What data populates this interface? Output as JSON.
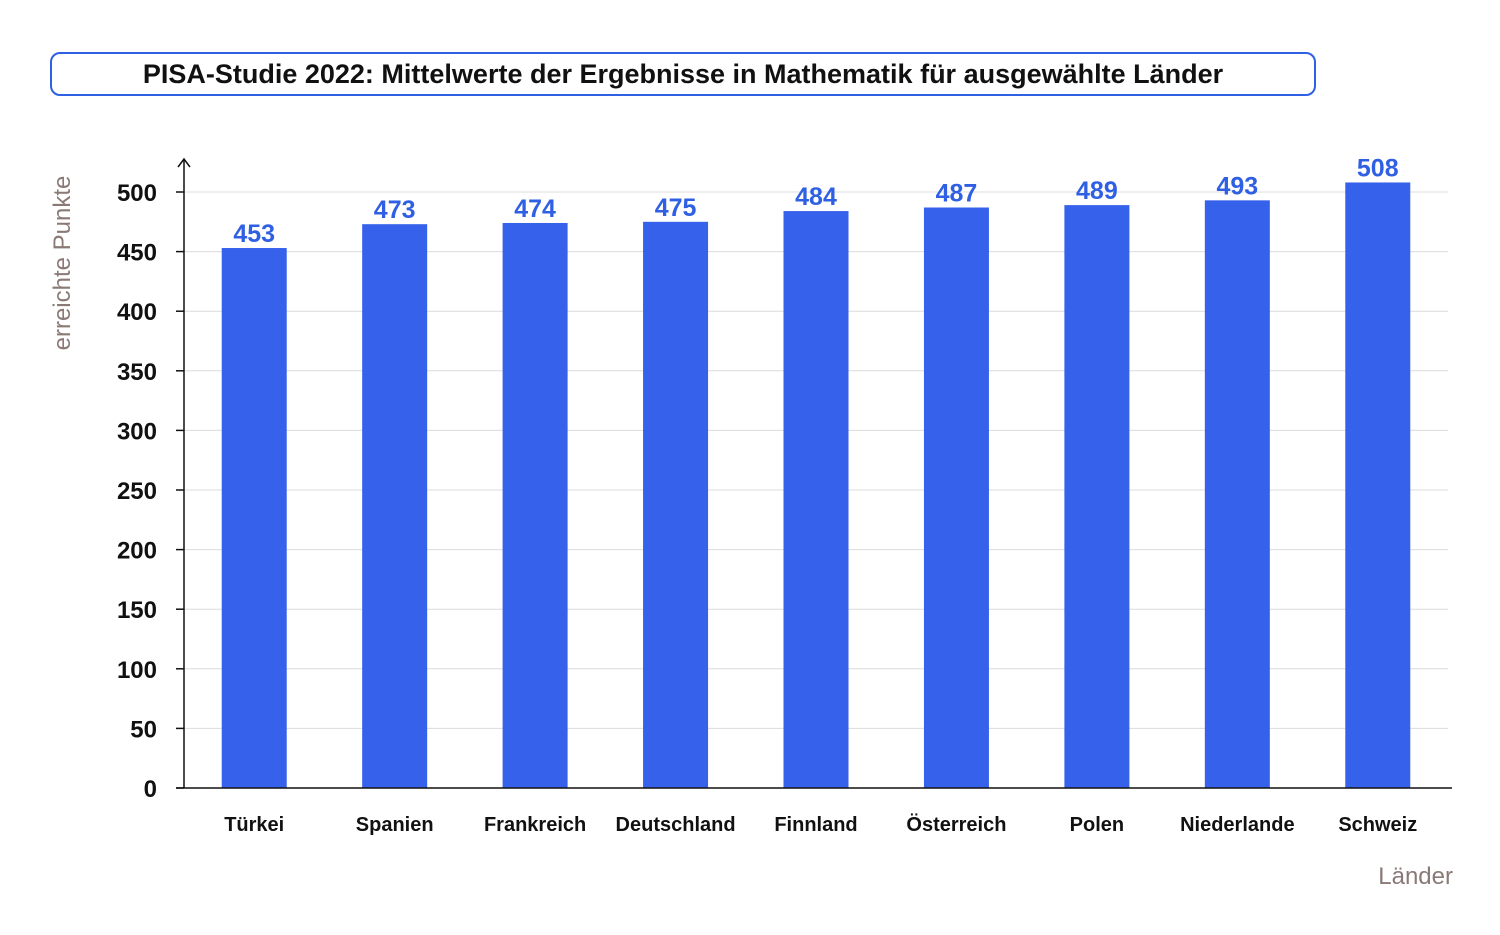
{
  "chart_data": {
    "type": "bar",
    "title": "PISA-Studie 2022: Mittelwerte der Ergebnisse in Mathematik für ausgewählte Länder",
    "xlabel": "Länder",
    "ylabel": "erreichte Punkte",
    "categories": [
      "Türkei",
      "Spanien",
      "Frankreich",
      "Deutschland",
      "Finnland",
      "Österreich",
      "Polen",
      "Niederlande",
      "Schweiz"
    ],
    "values": [
      453,
      473,
      474,
      475,
      484,
      487,
      489,
      493,
      508
    ],
    "ylim": [
      0,
      525
    ],
    "yticks": [
      0,
      50,
      100,
      150,
      200,
      250,
      300,
      350,
      400,
      450,
      500
    ],
    "grid": true,
    "bar_color": "#3661ea",
    "label_color": "#2f5fe3"
  }
}
